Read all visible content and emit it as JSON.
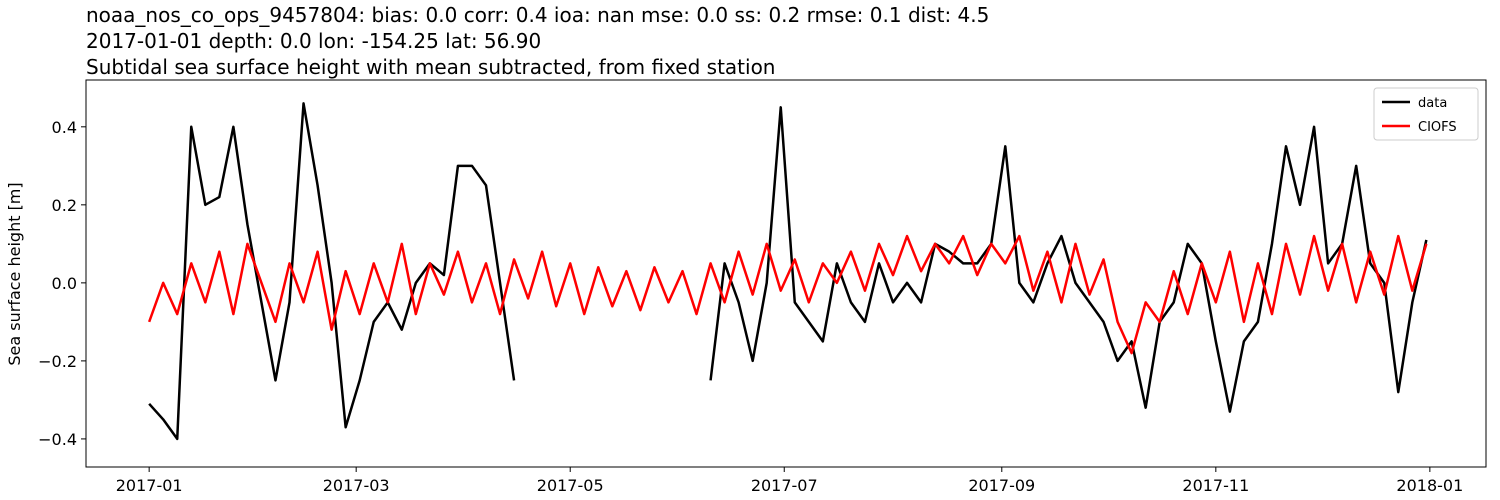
{
  "chart_data": {
    "type": "line",
    "title": "noaa_nos_co_ops_9457804: bias: 0.0  corr: 0.4  ioa: nan  mse: 0.0  ss: 0.2  rmse: 0.1  dist: 4.5",
    "subtitle": "2017-01-01 depth: 0.0 lon: -154.25 lat: 56.90",
    "subtitle2": "Subtidal sea surface height with mean subtracted, from fixed station",
    "ylabel": "Sea surface height [m]",
    "legend": "upper right",
    "xlim": [
      "2016-12-14",
      "2018-01-17"
    ],
    "xticks": [
      {
        "value": "2017-01-01",
        "label": "2017-01"
      },
      {
        "value": "2017-03-01",
        "label": "2017-03"
      },
      {
        "value": "2017-05-01",
        "label": "2017-05"
      },
      {
        "value": "2017-07-01",
        "label": "2017-07"
      },
      {
        "value": "2017-09-01",
        "label": "2017-09"
      },
      {
        "value": "2017-11-01",
        "label": "2017-11"
      },
      {
        "value": "2018-01-01",
        "label": "2018-01"
      }
    ],
    "ylim": [
      -0.472,
      0.52
    ],
    "yticks": [
      {
        "value": -0.4,
        "label": "−0.4"
      },
      {
        "value": -0.2,
        "label": "−0.2"
      },
      {
        "value": 0,
        "label": "0.0"
      },
      0.2,
      0.4
    ],
    "x": [
      "2017-01-01",
      "2017-01-05",
      "2017-01-09",
      "2017-01-13",
      "2017-01-17",
      "2017-01-21",
      "2017-01-25",
      "2017-01-29",
      "2017-02-02",
      "2017-02-06",
      "2017-02-10",
      "2017-02-14",
      "2017-02-18",
      "2017-02-22",
      "2017-02-26",
      "2017-03-02",
      "2017-03-06",
      "2017-03-10",
      "2017-03-14",
      "2017-03-18",
      "2017-03-22",
      "2017-03-26",
      "2017-03-30",
      "2017-04-03",
      "2017-04-07",
      "2017-04-11",
      "2017-04-15",
      "2017-04-19",
      "2017-04-23",
      "2017-04-27",
      "2017-05-01",
      "2017-05-05",
      "2017-05-09",
      "2017-05-13",
      "2017-05-17",
      "2017-05-21",
      "2017-05-25",
      "2017-05-29",
      "2017-06-02",
      "2017-06-06",
      "2017-06-10",
      "2017-06-14",
      "2017-06-18",
      "2017-06-22",
      "2017-06-26",
      "2017-06-30",
      "2017-07-04",
      "2017-07-08",
      "2017-07-12",
      "2017-07-16",
      "2017-07-20",
      "2017-07-24",
      "2017-07-28",
      "2017-08-01",
      "2017-08-05",
      "2017-08-09",
      "2017-08-13",
      "2017-08-17",
      "2017-08-21",
      "2017-08-25",
      "2017-08-29",
      "2017-09-02",
      "2017-09-06",
      "2017-09-10",
      "2017-09-14",
      "2017-09-18",
      "2017-09-22",
      "2017-09-26",
      "2017-09-30",
      "2017-10-04",
      "2017-10-08",
      "2017-10-12",
      "2017-10-16",
      "2017-10-20",
      "2017-10-24",
      "2017-10-28",
      "2017-11-01",
      "2017-11-05",
      "2017-11-09",
      "2017-11-13",
      "2017-11-17",
      "2017-11-21",
      "2017-11-25",
      "2017-11-29",
      "2017-12-03",
      "2017-12-07",
      "2017-12-11",
      "2017-12-15",
      "2017-12-19",
      "2017-12-23",
      "2017-12-27",
      "2017-12-31"
    ],
    "series": [
      {
        "name": "data",
        "color": "#000000",
        "values": [
          -0.31,
          -0.35,
          -0.4,
          0.4,
          0.2,
          0.22,
          0.4,
          0.15,
          -0.05,
          -0.25,
          -0.05,
          0.46,
          0.25,
          0.0,
          -0.37,
          -0.25,
          -0.1,
          -0.05,
          -0.12,
          0.0,
          0.05,
          0.02,
          0.3,
          0.3,
          0.25,
          0.0,
          -0.25,
          null,
          null,
          null,
          null,
          null,
          null,
          null,
          null,
          null,
          null,
          null,
          null,
          null,
          -0.25,
          0.05,
          -0.05,
          -0.2,
          0.0,
          0.45,
          -0.05,
          -0.1,
          -0.15,
          0.05,
          -0.05,
          -0.1,
          0.05,
          -0.05,
          0.0,
          -0.05,
          0.1,
          0.08,
          0.05,
          0.05,
          0.1,
          0.35,
          0.0,
          -0.05,
          0.05,
          0.12,
          0.0,
          -0.05,
          -0.1,
          -0.2,
          -0.15,
          -0.32,
          -0.1,
          -0.05,
          0.1,
          0.05,
          -0.15,
          -0.33,
          -0.15,
          -0.1,
          0.1,
          0.35,
          0.2,
          0.4,
          0.05,
          0.1,
          0.3,
          0.05,
          0.0,
          -0.28,
          -0.05,
          0.11
        ]
      },
      {
        "name": "CIOFS",
        "color": "#ff0000",
        "values": [
          -0.1,
          0.0,
          -0.08,
          0.05,
          -0.05,
          0.08,
          -0.08,
          0.1,
          0.0,
          -0.1,
          0.05,
          -0.05,
          0.08,
          -0.12,
          0.03,
          -0.08,
          0.05,
          -0.05,
          0.1,
          -0.08,
          0.05,
          -0.03,
          0.08,
          -0.05,
          0.05,
          -0.08,
          0.06,
          -0.04,
          0.08,
          -0.06,
          0.05,
          -0.08,
          0.04,
          -0.06,
          0.03,
          -0.07,
          0.04,
          -0.05,
          0.03,
          -0.08,
          0.05,
          -0.05,
          0.08,
          -0.03,
          0.1,
          -0.02,
          0.06,
          -0.05,
          0.05,
          0.0,
          0.08,
          -0.02,
          0.1,
          0.02,
          0.12,
          0.03,
          0.1,
          0.05,
          0.12,
          0.02,
          0.1,
          0.05,
          0.12,
          -0.02,
          0.08,
          -0.05,
          0.1,
          -0.03,
          0.06,
          -0.1,
          -0.18,
          -0.05,
          -0.1,
          0.03,
          -0.08,
          0.05,
          -0.05,
          0.08,
          -0.1,
          0.05,
          -0.08,
          0.1,
          -0.03,
          0.12,
          -0.02,
          0.1,
          -0.05,
          0.08,
          -0.03,
          0.12,
          -0.02,
          0.1
        ]
      }
    ]
  }
}
